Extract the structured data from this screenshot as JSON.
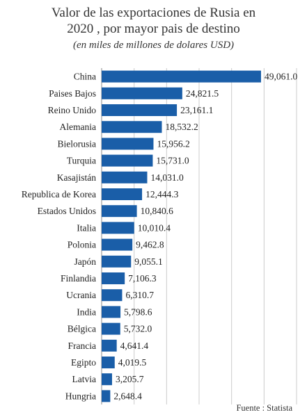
{
  "title_line1": "Valor de las exportaciones de Rusia en",
  "title_line2": "2020 , por mayor pais de destino",
  "subtitle": "(en miles de millones de dolares USD)",
  "source": "Fuente : Statista",
  "colors": {
    "bar": "#1a5ea8",
    "grid": "#cccccc",
    "axis": "#888888"
  },
  "chart_data": {
    "type": "bar",
    "orientation": "horizontal",
    "title": "Valor de las exportaciones de Rusia en 2020 , por mayor pais de destino",
    "subtitle": "(en miles de millones de dolares USD)",
    "categories": [
      "China",
      "Paises Bajos",
      "Reino Unido",
      "Alemania",
      "Bielorusia",
      "Turquia",
      "Kasajistán",
      "Republica de Korea",
      "Estados Unidos",
      "Italia",
      "Polonia",
      "Japón",
      "Finlandia",
      "Ucrania",
      "India",
      "Bélgica",
      "Francia",
      "Egipto",
      "Latvia",
      "Hungria"
    ],
    "values": [
      49061.0,
      24821.5,
      23161.1,
      18532.2,
      15956.2,
      15731.0,
      14031.0,
      12444.3,
      10840.6,
      10010.4,
      9462.8,
      9055.1,
      7106.3,
      6310.7,
      5798.6,
      5732.0,
      4641.4,
      4019.5,
      3205.7,
      2648.4
    ],
    "value_labels": [
      "49,061.0",
      "24,821.5",
      "23,161.1",
      "18,532.2",
      "15,956.2",
      "15,731.0",
      "14,031.0",
      "12,444.3",
      "10,840.6",
      "10,010.4",
      "9,462.8",
      "9,055.1",
      "7,106.3",
      "6,310.7",
      "5,798.6",
      "5,732.0",
      "4,641.4",
      "4,019.5",
      "3,205.7",
      "2,648.4"
    ],
    "xlim": [
      0,
      60000
    ],
    "grid": true,
    "xlabel": "",
    "ylabel": ""
  }
}
